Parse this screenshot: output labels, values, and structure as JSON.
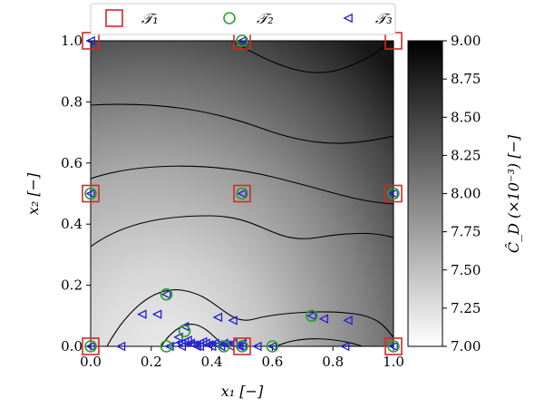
{
  "chart_data": {
    "type": "scatter",
    "xlabel": "x₁ [−]",
    "ylabel": "x₂ [−]",
    "xlim": [
      0.0,
      1.0
    ],
    "ylim": [
      0.0,
      1.0
    ],
    "xticks": [
      "0.0",
      "0.2",
      "0.4",
      "0.6",
      "0.8",
      "1.0"
    ],
    "yticks": [
      "0.0",
      "0.2",
      "0.4",
      "0.6",
      "0.8",
      "1.0"
    ],
    "background": "contour map of predicted drag coefficient, grayscale (light = low, dark = high) with black contour lines",
    "colorbar": {
      "label": "Ĉ_D (×10⁻³) [−]",
      "range": [
        7.0,
        9.0
      ],
      "ticks": [
        "7.00",
        "7.25",
        "7.50",
        "7.75",
        "8.00",
        "8.25",
        "8.50",
        "8.75",
        "9.00"
      ],
      "low_color": "#ffffff",
      "high_color": "#000000"
    },
    "legend_position": "top",
    "series": [
      {
        "name": "𝒯₁",
        "marker": "square",
        "color": "#d62728",
        "x": [
          0.0,
          0.5,
          1.0,
          0.0,
          0.5,
          1.0,
          0.0,
          0.5,
          1.0
        ],
        "y": [
          1.0,
          1.0,
          1.0,
          0.5,
          0.5,
          0.5,
          0.0,
          0.0,
          0.0
        ]
      },
      {
        "name": "𝒯₂",
        "marker": "circle",
        "color": "#2ca02c",
        "x": [
          0.5,
          0.0,
          0.5,
          1.0,
          0.25,
          0.31,
          0.73,
          0.0,
          0.25,
          0.44,
          0.5,
          0.6,
          1.0
        ],
        "y": [
          1.0,
          0.5,
          0.5,
          0.5,
          0.17,
          0.05,
          0.1,
          0.0,
          0.0,
          0.0,
          0.0,
          0.0,
          0.0
        ]
      },
      {
        "name": "𝒯₃",
        "marker": "triangle-left",
        "color": "#1f1fd6",
        "x": [
          0.0,
          0.5,
          0.0,
          0.5,
          1.0,
          0.25,
          0.17,
          0.22,
          0.31,
          0.29,
          0.42,
          0.47,
          0.73,
          0.77,
          0.85,
          0.0,
          0.1,
          0.26,
          0.28,
          0.3,
          0.31,
          0.32,
          0.33,
          0.34,
          0.35,
          0.36,
          0.37,
          0.38,
          0.39,
          0.4,
          0.41,
          0.42,
          0.43,
          0.44,
          0.45,
          0.46,
          0.47,
          0.49,
          0.5,
          0.55,
          0.6,
          0.84,
          1.0,
          0.3,
          0.33,
          0.36,
          0.4,
          0.43,
          0.46,
          0.5
        ],
        "y": [
          1.0,
          1.0,
          0.5,
          0.5,
          0.5,
          0.17,
          0.105,
          0.105,
          0.065,
          0.03,
          0.095,
          0.085,
          0.1,
          0.09,
          0.085,
          0.0,
          0.0,
          0.0,
          0.005,
          0.01,
          0.015,
          0.02,
          0.01,
          0.005,
          0.0,
          0.01,
          0.015,
          0.01,
          0.005,
          0.0,
          0.01,
          0.005,
          0.0,
          0.01,
          0.005,
          0.0,
          0.01,
          0.0,
          0.0,
          0.0,
          0.0,
          0.0,
          0.0,
          0.0,
          0.005,
          0.0,
          0.005,
          0.0,
          0.005,
          0.01
        ]
      }
    ]
  }
}
